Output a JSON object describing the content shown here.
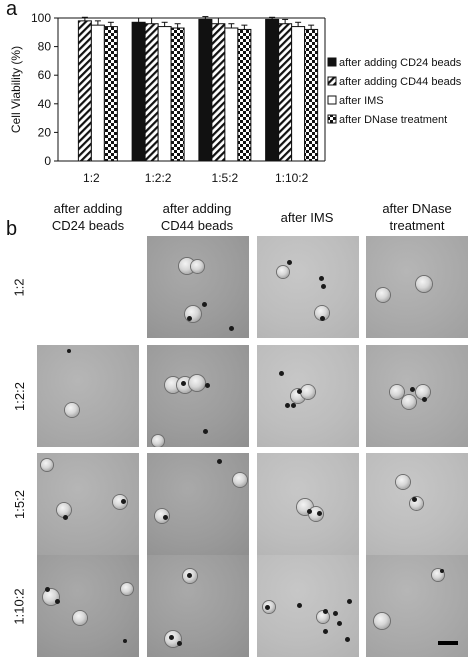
{
  "panel_a_label": "a",
  "panel_b_label": "b",
  "chart_data": {
    "type": "bar",
    "ylabel": "Cell Viability (%)",
    "xlabel": "",
    "ylim": [
      0,
      100
    ],
    "yticks": [
      "0",
      "20",
      "40",
      "60",
      "80",
      "100"
    ],
    "categories": [
      "1:2",
      "1:2:2",
      "1:5:2",
      "1:10:2"
    ],
    "series": [
      {
        "name": "after adding CD24 beads",
        "pattern": "solid",
        "values": [
          null,
          97,
          99,
          99
        ],
        "errors": [
          null,
          3,
          2,
          1.5
        ]
      },
      {
        "name": "after adding CD44 beads",
        "pattern": "hatch",
        "values": [
          98,
          96,
          96,
          96
        ],
        "errors": [
          2.5,
          4,
          4,
          3
        ]
      },
      {
        "name": "after IMS",
        "pattern": "empty",
        "values": [
          95,
          94,
          93,
          94
        ],
        "errors": [
          3,
          3,
          3,
          3
        ]
      },
      {
        "name": "after DNase treatment",
        "pattern": "checker",
        "values": [
          94,
          93,
          92,
          92
        ],
        "errors": [
          3,
          3,
          3,
          3
        ]
      }
    ],
    "legend_position": "right",
    "grid": false
  },
  "micrographs": {
    "column_headers": [
      "after adding\nCD24 beads",
      "after adding\nCD44 beads",
      "after IMS",
      "after DNase\ntreatment"
    ],
    "row_labels": [
      "1:2",
      "1:2:2",
      "1:5:2",
      "1:10:2"
    ]
  }
}
